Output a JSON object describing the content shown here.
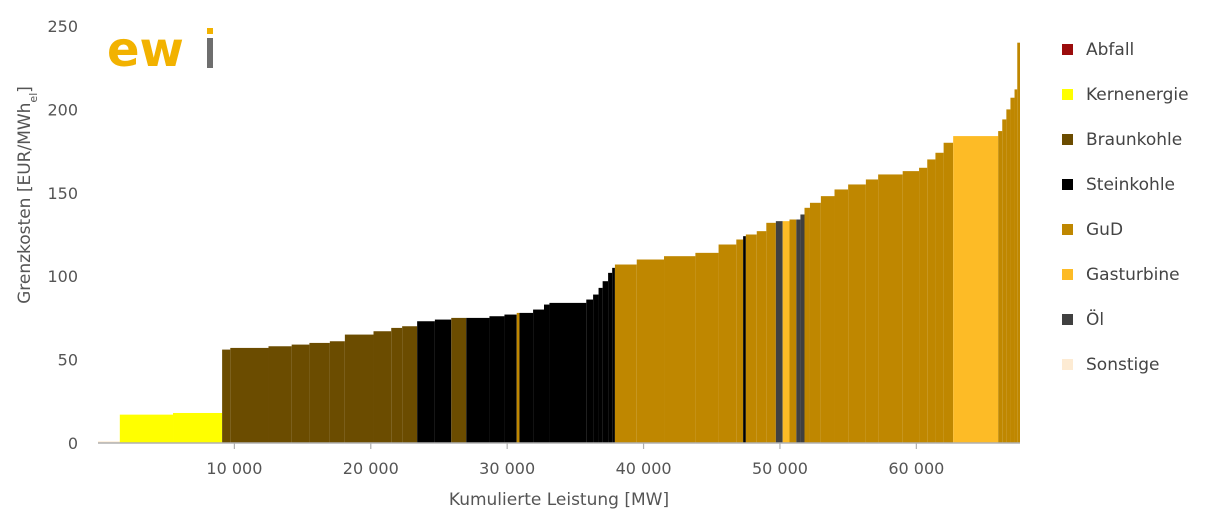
{
  "chart_data": {
    "type": "bar",
    "subtype": "merit-order-step-area",
    "xlabel": "Kumulierte Leistung [MW]",
    "ylabel_main": "Grenzkosten [EUR/MWh",
    "ylabel_sub": "el",
    "ylabel_close": "]",
    "xlim": [
      0,
      67600
    ],
    "ylim": [
      0,
      250
    ],
    "xticks": [
      10000,
      20000,
      30000,
      40000,
      50000,
      60000
    ],
    "xtick_labels": [
      "10 000",
      "20 000",
      "30 000",
      "40 000",
      "50 000",
      "60 000"
    ],
    "yticks": [
      0,
      50,
      100,
      150,
      200,
      250
    ],
    "ytick_labels": [
      "0",
      "50",
      "100",
      "150",
      "200",
      "250"
    ],
    "grid": false,
    "legend_position": "right",
    "logo": "ewi",
    "series": [
      {
        "name": "Abfall",
        "color": "#9b0c0c"
      },
      {
        "name": "Kernenergie",
        "color": "#ffff00"
      },
      {
        "name": "Braunkohle",
        "color": "#6b4c00"
      },
      {
        "name": "Steinkohle",
        "color": "#000000"
      },
      {
        "name": "GuD",
        "color": "#bf8700"
      },
      {
        "name": "Gasturbine",
        "color": "#fdbb26"
      },
      {
        "name": "Öl",
        "color": "#404040"
      },
      {
        "name": "Sonstige",
        "color": "#fdebd3"
      }
    ],
    "blocks": [
      {
        "x0": 0,
        "x1": 1600,
        "y": 1,
        "type": "Sonstige"
      },
      {
        "x0": 1600,
        "x1": 5500,
        "y": 17,
        "type": "Kernenergie"
      },
      {
        "x0": 5500,
        "x1": 9100,
        "y": 18,
        "type": "Kernenergie"
      },
      {
        "x0": 9100,
        "x1": 9700,
        "y": 56,
        "type": "Braunkohle"
      },
      {
        "x0": 9700,
        "x1": 12500,
        "y": 57,
        "type": "Braunkohle"
      },
      {
        "x0": 12500,
        "x1": 14200,
        "y": 58,
        "type": "Braunkohle"
      },
      {
        "x0": 14200,
        "x1": 15500,
        "y": 59,
        "type": "Braunkohle"
      },
      {
        "x0": 15500,
        "x1": 17000,
        "y": 60,
        "type": "Braunkohle"
      },
      {
        "x0": 17000,
        "x1": 18100,
        "y": 61,
        "type": "Braunkohle"
      },
      {
        "x0": 18100,
        "x1": 20200,
        "y": 65,
        "type": "Braunkohle"
      },
      {
        "x0": 20200,
        "x1": 21500,
        "y": 67,
        "type": "Braunkohle"
      },
      {
        "x0": 21500,
        "x1": 22300,
        "y": 69,
        "type": "Braunkohle"
      },
      {
        "x0": 22300,
        "x1": 23400,
        "y": 70,
        "type": "Braunkohle"
      },
      {
        "x0": 23400,
        "x1": 24700,
        "y": 73,
        "type": "Steinkohle"
      },
      {
        "x0": 24700,
        "x1": 25900,
        "y": 74,
        "type": "Steinkohle"
      },
      {
        "x0": 25900,
        "x1": 27000,
        "y": 75,
        "type": "Braunkohle"
      },
      {
        "x0": 27000,
        "x1": 28700,
        "y": 75,
        "type": "Steinkohle"
      },
      {
        "x0": 28700,
        "x1": 29800,
        "y": 76,
        "type": "Steinkohle"
      },
      {
        "x0": 29800,
        "x1": 30700,
        "y": 77,
        "type": "Steinkohle"
      },
      {
        "x0": 30700,
        "x1": 30900,
        "y": 78,
        "type": "GuD"
      },
      {
        "x0": 30900,
        "x1": 31900,
        "y": 78,
        "type": "Steinkohle"
      },
      {
        "x0": 31900,
        "x1": 32700,
        "y": 80,
        "type": "Steinkohle"
      },
      {
        "x0": 32700,
        "x1": 33100,
        "y": 83,
        "type": "Steinkohle"
      },
      {
        "x0": 33100,
        "x1": 35800,
        "y": 84,
        "type": "Steinkohle"
      },
      {
        "x0": 35800,
        "x1": 36300,
        "y": 86,
        "type": "Steinkohle"
      },
      {
        "x0": 36300,
        "x1": 36700,
        "y": 89,
        "type": "Steinkohle"
      },
      {
        "x0": 36700,
        "x1": 37000,
        "y": 93,
        "type": "Steinkohle"
      },
      {
        "x0": 37000,
        "x1": 37400,
        "y": 97,
        "type": "Steinkohle"
      },
      {
        "x0": 37400,
        "x1": 37700,
        "y": 102,
        "type": "Steinkohle"
      },
      {
        "x0": 37700,
        "x1": 37900,
        "y": 105,
        "type": "Steinkohle"
      },
      {
        "x0": 37900,
        "x1": 39500,
        "y": 107,
        "type": "GuD"
      },
      {
        "x0": 39500,
        "x1": 41500,
        "y": 110,
        "type": "GuD"
      },
      {
        "x0": 41500,
        "x1": 43800,
        "y": 112,
        "type": "GuD"
      },
      {
        "x0": 43800,
        "x1": 45500,
        "y": 114,
        "type": "GuD"
      },
      {
        "x0": 45500,
        "x1": 46800,
        "y": 119,
        "type": "GuD"
      },
      {
        "x0": 46800,
        "x1": 47300,
        "y": 122,
        "type": "GuD"
      },
      {
        "x0": 47300,
        "x1": 47500,
        "y": 124,
        "type": "Steinkohle"
      },
      {
        "x0": 47500,
        "x1": 48300,
        "y": 125,
        "type": "GuD"
      },
      {
        "x0": 48300,
        "x1": 49000,
        "y": 127,
        "type": "GuD"
      },
      {
        "x0": 49000,
        "x1": 49700,
        "y": 132,
        "type": "GuD"
      },
      {
        "x0": 49700,
        "x1": 50200,
        "y": 133,
        "type": "Öl"
      },
      {
        "x0": 50200,
        "x1": 50700,
        "y": 133,
        "type": "Gasturbine"
      },
      {
        "x0": 50700,
        "x1": 51200,
        "y": 134,
        "type": "GuD"
      },
      {
        "x0": 51200,
        "x1": 51500,
        "y": 134,
        "type": "Öl"
      },
      {
        "x0": 51500,
        "x1": 51800,
        "y": 137,
        "type": "Öl"
      },
      {
        "x0": 51800,
        "x1": 52200,
        "y": 141,
        "type": "GuD"
      },
      {
        "x0": 52200,
        "x1": 53000,
        "y": 144,
        "type": "GuD"
      },
      {
        "x0": 53000,
        "x1": 54000,
        "y": 148,
        "type": "GuD"
      },
      {
        "x0": 54000,
        "x1": 55000,
        "y": 152,
        "type": "GuD"
      },
      {
        "x0": 55000,
        "x1": 56300,
        "y": 155,
        "type": "GuD"
      },
      {
        "x0": 56300,
        "x1": 57200,
        "y": 158,
        "type": "GuD"
      },
      {
        "x0": 57200,
        "x1": 59000,
        "y": 161,
        "type": "GuD"
      },
      {
        "x0": 59000,
        "x1": 60200,
        "y": 163,
        "type": "GuD"
      },
      {
        "x0": 60200,
        "x1": 60800,
        "y": 165,
        "type": "GuD"
      },
      {
        "x0": 60800,
        "x1": 61400,
        "y": 170,
        "type": "GuD"
      },
      {
        "x0": 61400,
        "x1": 62000,
        "y": 174,
        "type": "GuD"
      },
      {
        "x0": 62000,
        "x1": 62700,
        "y": 180,
        "type": "GuD"
      },
      {
        "x0": 62700,
        "x1": 66000,
        "y": 184,
        "type": "Gasturbine"
      },
      {
        "x0": 66000,
        "x1": 66300,
        "y": 187,
        "type": "GuD"
      },
      {
        "x0": 66300,
        "x1": 66600,
        "y": 194,
        "type": "GuD"
      },
      {
        "x0": 66600,
        "x1": 66900,
        "y": 200,
        "type": "GuD"
      },
      {
        "x0": 66900,
        "x1": 67200,
        "y": 207,
        "type": "GuD"
      },
      {
        "x0": 67200,
        "x1": 67400,
        "y": 212,
        "type": "GuD"
      },
      {
        "x0": 67400,
        "x1": 67600,
        "y": 240,
        "type": "GuD"
      }
    ]
  }
}
